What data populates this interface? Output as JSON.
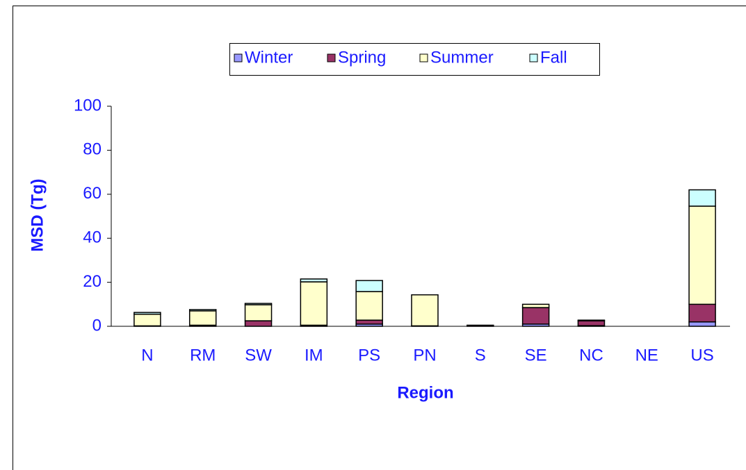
{
  "chart_data": {
    "type": "stacked_bar",
    "categories": [
      "N",
      "RM",
      "SW",
      "IM",
      "PS",
      "PN",
      "S",
      "SE",
      "NC",
      "NE",
      "US"
    ],
    "series": [
      {
        "name": "Winter",
        "color": "#9999ff",
        "values": [
          0,
          0,
          0,
          0,
          1,
          0,
          0,
          1,
          0.3,
          0,
          2
        ]
      },
      {
        "name": "Spring",
        "color": "#993366",
        "values": [
          0.2,
          0.5,
          2.5,
          0.5,
          1.8,
          0.2,
          0.5,
          7.5,
          2.2,
          0,
          8
        ]
      },
      {
        "name": "Summer",
        "color": "#ffffcc",
        "values": [
          5.3,
          6.5,
          7.3,
          19.7,
          13,
          14.1,
          0,
          1.5,
          0.3,
          0,
          44.6
        ]
      },
      {
        "name": "Fall",
        "color": "#ccffff",
        "values": [
          0.8,
          0.6,
          0.6,
          1.3,
          5,
          0,
          0,
          0,
          0,
          0,
          7.4
        ]
      }
    ],
    "xlabel": "Region",
    "ylabel": "MSD (Tg)",
    "ylim": [
      0,
      100
    ],
    "yticks": [
      0,
      20,
      40,
      60,
      80,
      100
    ],
    "legend": "top"
  }
}
